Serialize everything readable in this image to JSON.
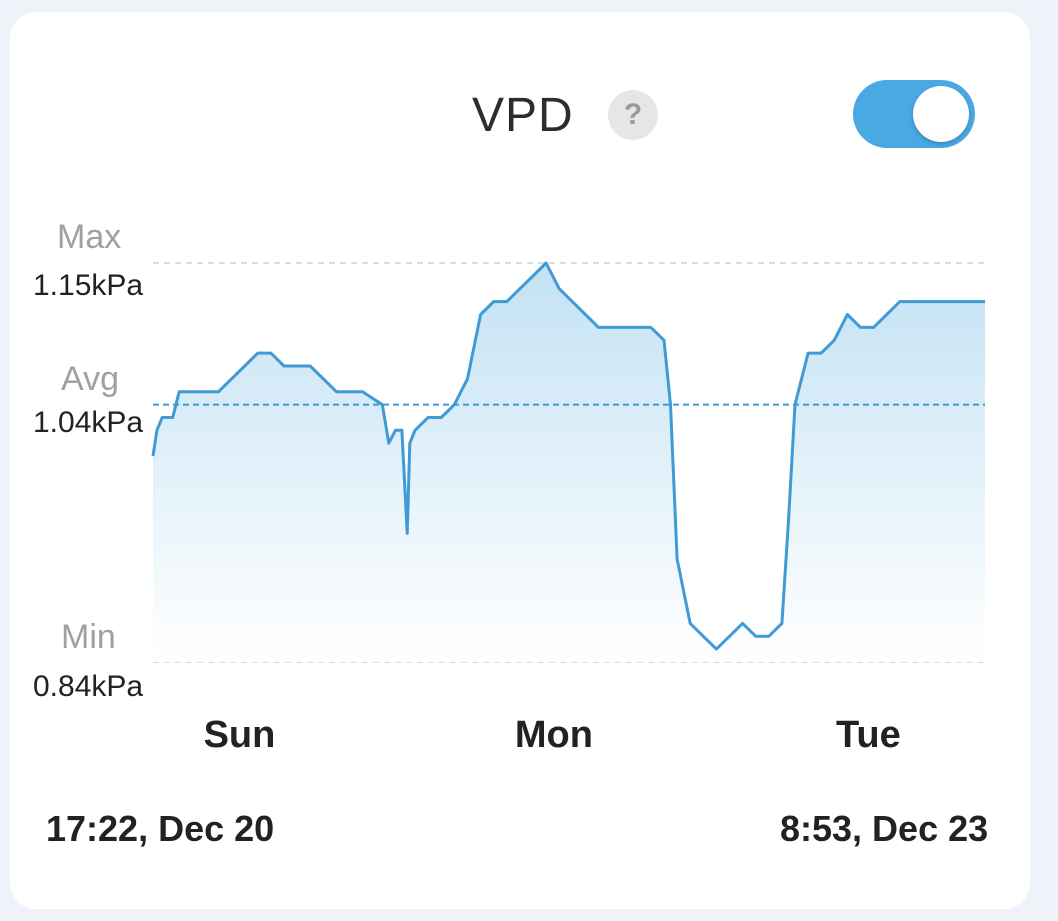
{
  "header": {
    "title": "VPD",
    "help_icon": "?",
    "toggle_on": true
  },
  "labels": {
    "max_caption": "Max",
    "max_value": "1.15kPa",
    "avg_caption": "Avg",
    "avg_value": "1.04kPa",
    "min_caption": "Min",
    "min_value": "0.84kPa"
  },
  "range": {
    "start": "17:22, Dec 20",
    "end": "8:53, Dec 23"
  },
  "colors": {
    "line": "#3f9ad6",
    "fill_top": "#bfe0f3",
    "toggle": "#4aa8e3",
    "ref_line": "#3f9ad6",
    "grid": "#dcdcdc"
  },
  "chart_data": {
    "type": "area",
    "x_unit": "hours since 17:22, Dec 20",
    "x_tick_labels": [
      "Sun",
      "Mon",
      "Tue"
    ],
    "x_tick_positions": [
      6.6,
      30.6,
      54.6
    ],
    "ylim": [
      0.84,
      1.15
    ],
    "max": 1.15,
    "avg": 1.04,
    "min": 0.84,
    "points": [
      [
        0.0,
        1.0
      ],
      [
        0.3,
        1.02
      ],
      [
        0.7,
        1.03
      ],
      [
        1.0,
        1.03
      ],
      [
        1.5,
        1.03
      ],
      [
        2.0,
        1.05
      ],
      [
        3.0,
        1.05
      ],
      [
        4.0,
        1.05
      ],
      [
        5.0,
        1.05
      ],
      [
        6.0,
        1.06
      ],
      [
        7.0,
        1.07
      ],
      [
        8.0,
        1.08
      ],
      [
        9.0,
        1.08
      ],
      [
        10.0,
        1.07
      ],
      [
        12.0,
        1.07
      ],
      [
        13.0,
        1.06
      ],
      [
        14.0,
        1.05
      ],
      [
        16.0,
        1.05
      ],
      [
        17.5,
        1.04
      ],
      [
        18.0,
        1.01
      ],
      [
        18.5,
        1.02
      ],
      [
        19.0,
        1.02
      ],
      [
        19.4,
        0.94
      ],
      [
        19.6,
        1.01
      ],
      [
        20.0,
        1.02
      ],
      [
        21.0,
        1.03
      ],
      [
        22.0,
        1.03
      ],
      [
        23.0,
        1.04
      ],
      [
        24.0,
        1.06
      ],
      [
        25.0,
        1.11
      ],
      [
        26.0,
        1.12
      ],
      [
        27.0,
        1.12
      ],
      [
        28.0,
        1.13
      ],
      [
        29.0,
        1.14
      ],
      [
        30.0,
        1.15
      ],
      [
        31.0,
        1.13
      ],
      [
        32.0,
        1.12
      ],
      [
        33.0,
        1.11
      ],
      [
        34.0,
        1.1
      ],
      [
        36.0,
        1.1
      ],
      [
        38.0,
        1.1
      ],
      [
        39.0,
        1.09
      ],
      [
        39.5,
        1.04
      ],
      [
        40.0,
        0.92
      ],
      [
        41.0,
        0.87
      ],
      [
        42.0,
        0.86
      ],
      [
        43.0,
        0.85
      ],
      [
        44.0,
        0.86
      ],
      [
        45.0,
        0.87
      ],
      [
        46.0,
        0.86
      ],
      [
        47.0,
        0.86
      ],
      [
        48.0,
        0.87
      ],
      [
        48.5,
        0.95
      ],
      [
        49.0,
        1.04
      ],
      [
        50.0,
        1.08
      ],
      [
        51.0,
        1.08
      ],
      [
        52.0,
        1.09
      ],
      [
        53.0,
        1.11
      ],
      [
        54.0,
        1.1
      ],
      [
        55.0,
        1.1
      ],
      [
        56.0,
        1.11
      ],
      [
        57.0,
        1.12
      ],
      [
        58.0,
        1.12
      ],
      [
        59.0,
        1.12
      ],
      [
        63.5,
        1.12
      ]
    ]
  }
}
